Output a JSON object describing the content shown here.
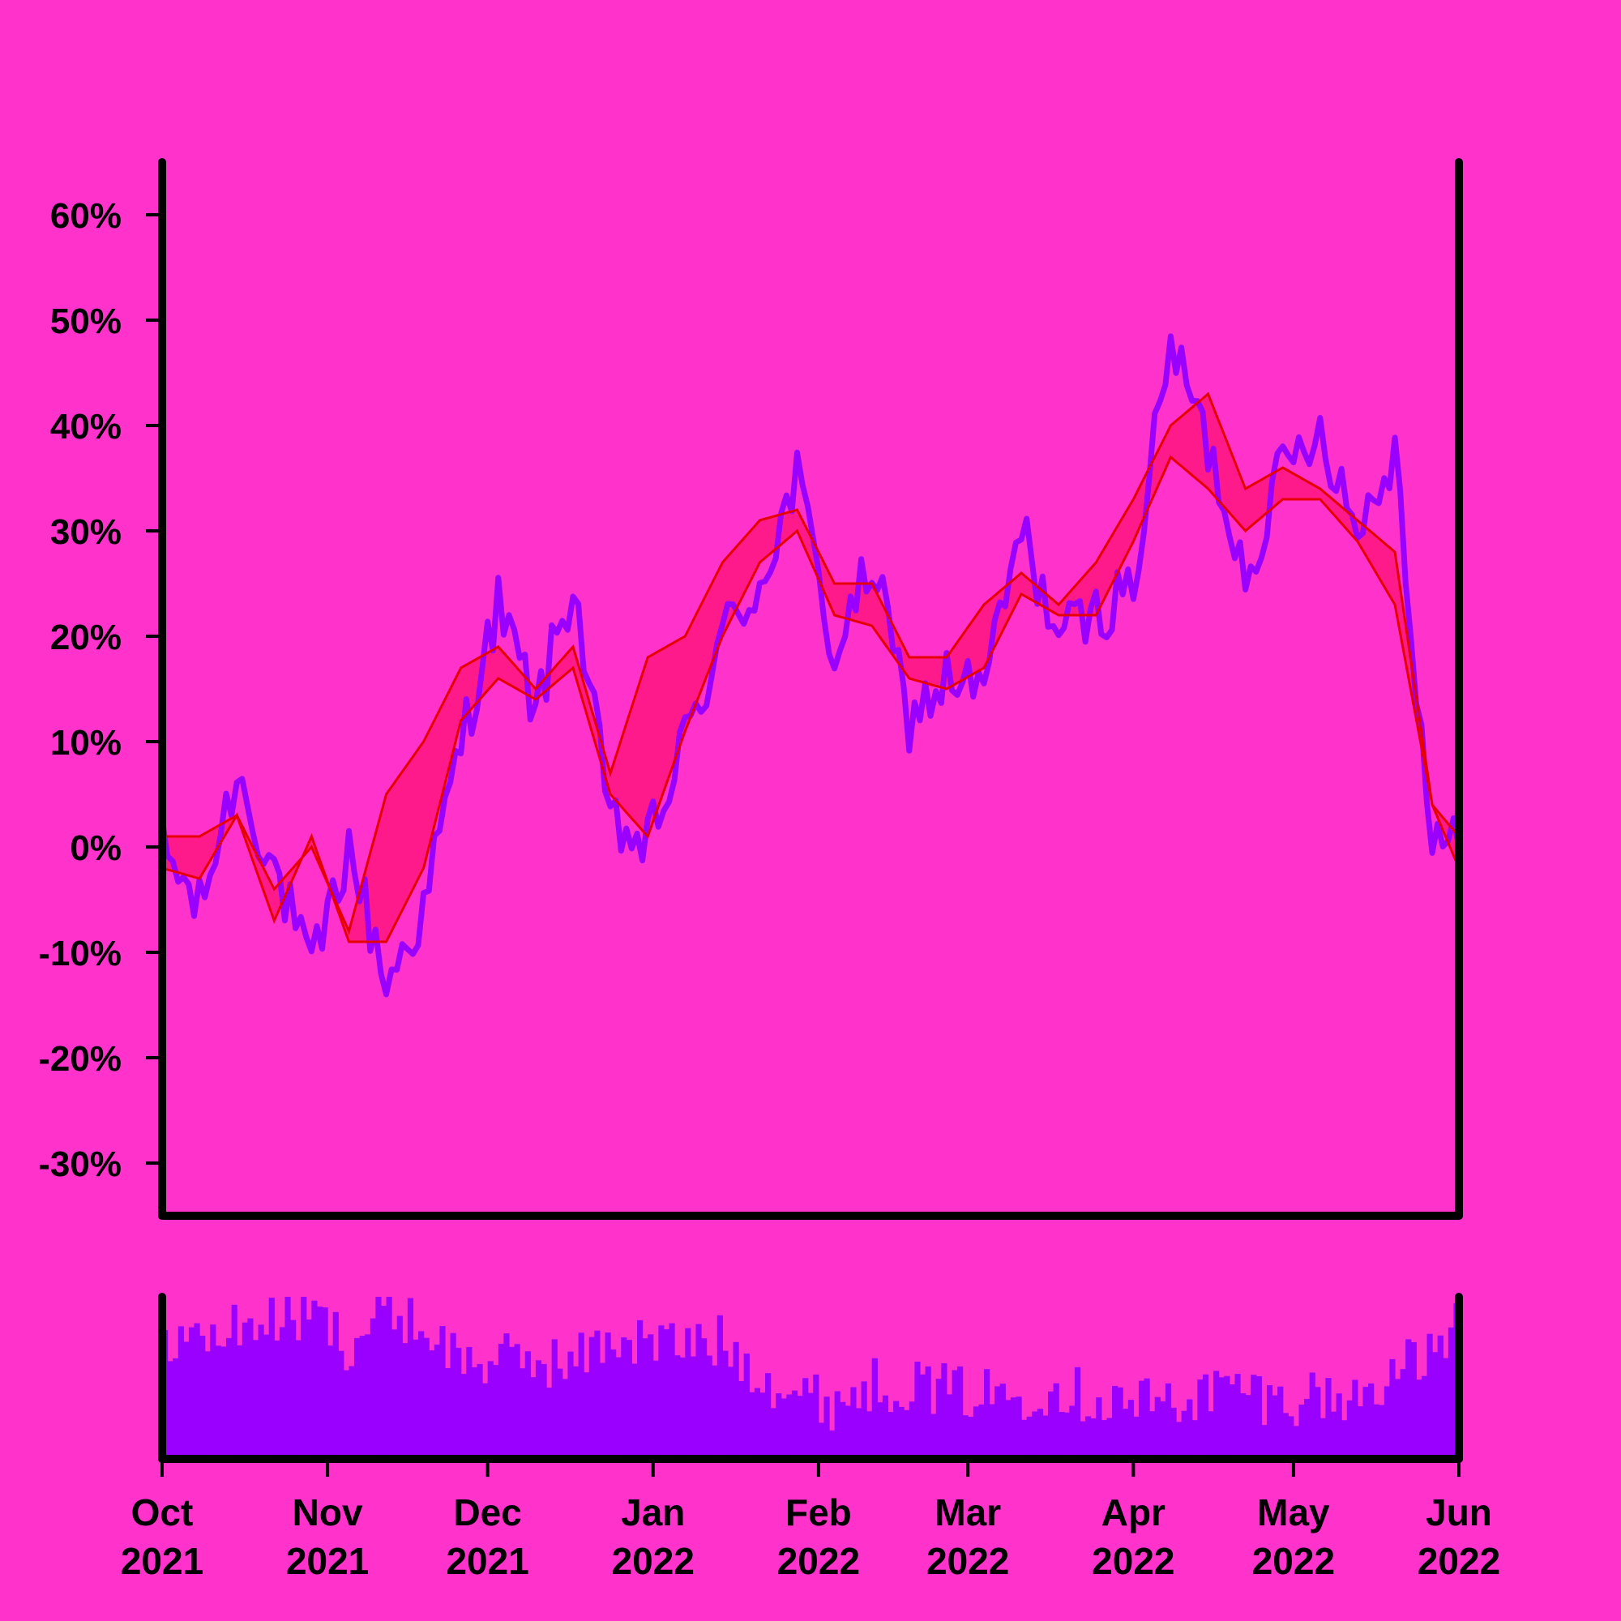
{
  "colors": {
    "background": "#ff33cc",
    "price": "#9900ff",
    "band": "#e60000",
    "band_fill": "#ff1a8c",
    "volume": "#9900ff",
    "axis": "#000000"
  },
  "chart_data": [
    {
      "type": "line",
      "panel": "price",
      "y_unit": "%",
      "ylim": [
        -35,
        65
      ],
      "y_ticks": [
        -30,
        -20,
        -10,
        0,
        10,
        20,
        30,
        40,
        50,
        60
      ],
      "y_tick_labels": [
        "-30%",
        "-20%",
        "-10%",
        "0%",
        "10%",
        "20%",
        "30%",
        "40%",
        "50%",
        "60%"
      ],
      "x_start": "2021-10-01",
      "x_end": "2022-06-01",
      "series": [
        {
          "role": "price",
          "x": [
            "2021-10-01",
            "2021-10-08",
            "2021-10-15",
            "2021-10-22",
            "2021-10-29",
            "2021-11-05",
            "2021-11-12",
            "2021-11-19",
            "2021-11-26",
            "2021-12-03",
            "2021-12-10",
            "2021-12-17",
            "2021-12-24",
            "2021-12-31",
            "2022-01-07",
            "2022-01-14",
            "2022-01-21",
            "2022-01-28",
            "2022-02-04",
            "2022-02-11",
            "2022-02-18",
            "2022-02-25",
            "2022-03-04",
            "2022-03-11",
            "2022-03-18",
            "2022-03-25",
            "2022-04-01",
            "2022-04-08",
            "2022-04-15",
            "2022-04-22",
            "2022-04-29",
            "2022-05-06",
            "2022-05-13",
            "2022-05-20",
            "2022-05-27",
            "2022-06-01"
          ],
          "values": [
            0,
            -6,
            7,
            -2,
            -12,
            0,
            -13,
            -6,
            10,
            23,
            13,
            25,
            2,
            0,
            10,
            20,
            25,
            35,
            18,
            27,
            12,
            16,
            15,
            30,
            20,
            22,
            25,
            48,
            38,
            26,
            36,
            40,
            30,
            38,
            0,
            0
          ]
        },
        {
          "role": "band-upper",
          "x": [
            "2021-10-01",
            "2021-10-08",
            "2021-10-15",
            "2021-10-22",
            "2021-10-29",
            "2021-11-05",
            "2021-11-12",
            "2021-11-19",
            "2021-11-26",
            "2021-12-03",
            "2021-12-10",
            "2021-12-17",
            "2021-12-24",
            "2021-12-31",
            "2022-01-07",
            "2022-01-14",
            "2022-01-21",
            "2022-01-28",
            "2022-02-04",
            "2022-02-11",
            "2022-02-18",
            "2022-02-25",
            "2022-03-04",
            "2022-03-11",
            "2022-03-18",
            "2022-03-25",
            "2022-04-01",
            "2022-04-08",
            "2022-04-15",
            "2022-04-22",
            "2022-04-29",
            "2022-05-06",
            "2022-05-13",
            "2022-05-20",
            "2022-05-27",
            "2022-06-01"
          ],
          "values": [
            1,
            1,
            3,
            -4,
            0,
            -8,
            5,
            10,
            17,
            19,
            15,
            19,
            7,
            18,
            20,
            27,
            31,
            32,
            25,
            25,
            18,
            18,
            23,
            26,
            23,
            27,
            33,
            40,
            43,
            34,
            36,
            34,
            31,
            28,
            4,
            1
          ]
        },
        {
          "role": "band-lower",
          "x": [
            "2021-10-01",
            "2021-10-08",
            "2021-10-15",
            "2021-10-22",
            "2021-10-29",
            "2021-11-05",
            "2021-11-12",
            "2021-11-19",
            "2021-11-26",
            "2021-12-03",
            "2021-12-10",
            "2021-12-17",
            "2021-12-24",
            "2021-12-31",
            "2022-01-07",
            "2022-01-14",
            "2022-01-21",
            "2022-01-28",
            "2022-02-04",
            "2022-02-11",
            "2022-02-18",
            "2022-02-25",
            "2022-03-04",
            "2022-03-11",
            "2022-03-18",
            "2022-03-25",
            "2022-04-01",
            "2022-04-08",
            "2022-04-15",
            "2022-04-22",
            "2022-04-29",
            "2022-05-06",
            "2022-05-13",
            "2022-05-20",
            "2022-05-27",
            "2022-06-01"
          ],
          "values": [
            -2,
            -3,
            3,
            -7,
            1,
            -9,
            -9,
            -2,
            12,
            16,
            14,
            17,
            5,
            1,
            11,
            20,
            27,
            30,
            22,
            21,
            16,
            15,
            17,
            24,
            22,
            22,
            29,
            37,
            34,
            30,
            33,
            33,
            29,
            23,
            4,
            -2
          ]
        }
      ]
    },
    {
      "type": "bar",
      "panel": "volume",
      "x_start": "2021-10-01",
      "x_end": "2022-06-01",
      "ylim": [
        0,
        1
      ],
      "weekly_levels": [
        0.78,
        0.72,
        0.82,
        0.85,
        0.9,
        0.7,
        0.95,
        0.8,
        0.62,
        0.6,
        0.62,
        0.58,
        0.75,
        0.72,
        0.7,
        0.72,
        0.55,
        0.4,
        0.35,
        0.45,
        0.47,
        0.42,
        0.4,
        0.4,
        0.45,
        0.38,
        0.35,
        0.35,
        0.4,
        0.45,
        0.35,
        0.4,
        0.35,
        0.52,
        0.6,
        0.88
      ]
    }
  ],
  "x_axis": {
    "ticks": [
      {
        "date": "2021-10-01",
        "month": "Oct",
        "year": "2021"
      },
      {
        "date": "2021-11-01",
        "month": "Nov",
        "year": "2021"
      },
      {
        "date": "2021-12-01",
        "month": "Dec",
        "year": "2021"
      },
      {
        "date": "2022-01-01",
        "month": "Jan",
        "year": "2022"
      },
      {
        "date": "2022-02-01",
        "month": "Feb",
        "year": "2022"
      },
      {
        "date": "2022-03-01",
        "month": "Mar",
        "year": "2022"
      },
      {
        "date": "2022-04-01",
        "month": "Apr",
        "year": "2022"
      },
      {
        "date": "2022-05-01",
        "month": "May",
        "year": "2022"
      },
      {
        "date": "2022-06-01",
        "month": "Jun",
        "year": "2022"
      }
    ]
  }
}
